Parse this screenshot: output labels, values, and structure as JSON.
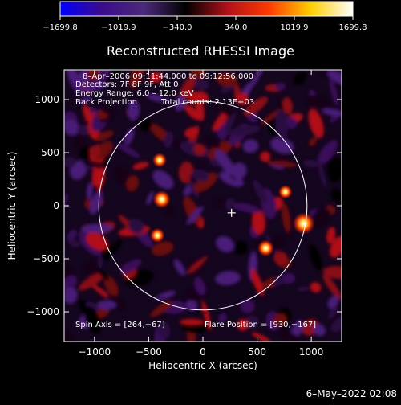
{
  "chart_data": {
    "type": "heatmap",
    "title": "Reconstructed RHESSI Image",
    "xlabel": "Heliocentric X (arcsec)",
    "ylabel": "Heliocentric Y (arcsec)",
    "xlim": [
      -1280,
      1280
    ],
    "ylim": [
      -1280,
      1280
    ],
    "xticks": [
      -1000,
      -500,
      0,
      500,
      1000
    ],
    "yticks": [
      -1000,
      -500,
      0,
      500,
      1000
    ],
    "colorbar": {
      "min": -1699.8,
      "max": 1699.8,
      "tick_values": [
        -1699.8,
        -1019.9,
        -340.0,
        340.0,
        1019.9,
        1699.8
      ],
      "tick_labels": [
        "−1699.8",
        "−1019.9",
        "−340.0",
        "340.0",
        "1019.9",
        "1699.8"
      ],
      "gradient_colors": [
        "#0000ff",
        "#3c0a8c",
        "#4b2a7a",
        "#000000",
        "#b0101a",
        "#ff3a00",
        "#ffd000",
        "#ffffff"
      ]
    },
    "annotations": [
      "8–Apr–2006 09:11:44.000 to 09:12:56.000",
      "Detectors: 7F 8F 9F, Att 0",
      "Energy Range: 6.0 – 12.0 keV",
      "Back Projection",
      "Total counts: 2.13E+03"
    ],
    "spin_axis_text": "Spin Axis = [264,−67]",
    "flare_position_text": "Flare Position = [930,−167]",
    "solar_disk": {
      "center": [
        0,
        0
      ],
      "radius": 960
    },
    "spin_axis_marker": [
      264,
      -67
    ],
    "sources": [
      {
        "x": 930,
        "y": -167,
        "value": 1699.8
      },
      {
        "x": -380,
        "y": 60,
        "value": 1100
      },
      {
        "x": 580,
        "y": -400,
        "value": 950
      },
      {
        "x": -420,
        "y": -280,
        "value": 700
      },
      {
        "x": -400,
        "y": 430,
        "value": 650
      },
      {
        "x": 760,
        "y": 130,
        "value": 600
      }
    ]
  },
  "footer": {
    "date": "6–May–2022 02:08"
  }
}
